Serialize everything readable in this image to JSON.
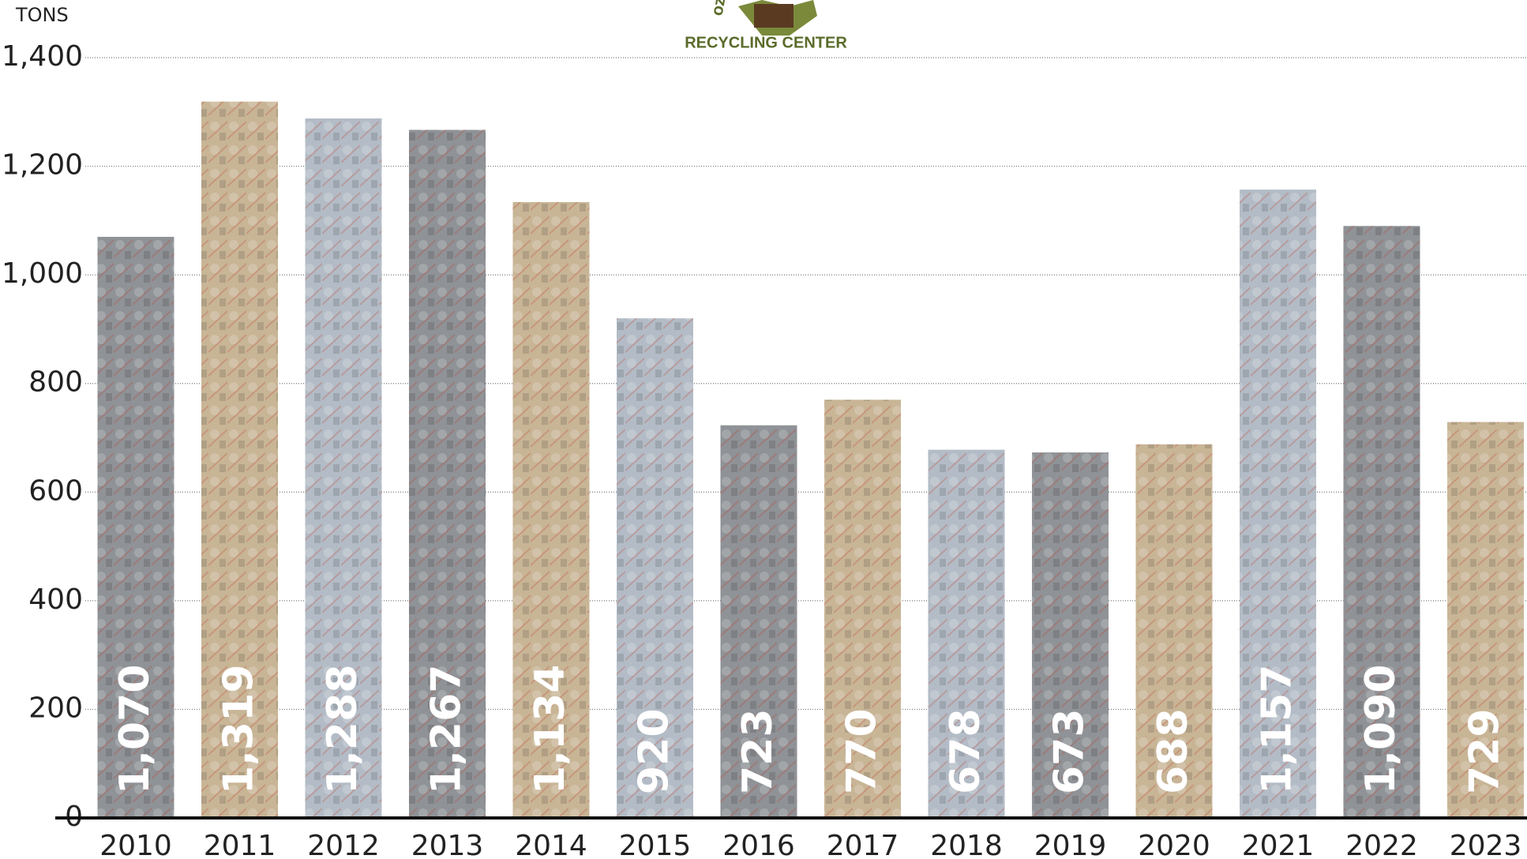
{
  "chart_data": {
    "type": "bar",
    "y_label": "TONS",
    "logo": {
      "top": "OZARK",
      "bottom": "RECYCLING CENTER"
    },
    "categories": [
      "2010",
      "2011",
      "2012",
      "2013",
      "2014",
      "2015",
      "2016",
      "2017",
      "2018",
      "2019",
      "2020",
      "2021",
      "2022",
      "2023"
    ],
    "values": [
      1070,
      1319,
      1288,
      1267,
      1134,
      920,
      723,
      770,
      678,
      673,
      688,
      1157,
      1090,
      729
    ],
    "value_labels": [
      "1,070",
      "1,319",
      "1,288",
      "1,267",
      "1,134",
      "920",
      "723",
      "770",
      "678",
      "673",
      "688",
      "1,157",
      "1,090",
      "729"
    ],
    "colors": [
      "#8f9296",
      "#c8b596",
      "#b3bcc6",
      "#8f9296",
      "#c8b596",
      "#b3bcc6",
      "#8f9296",
      "#c8b596",
      "#b3bcc6",
      "#8f9296",
      "#c8b596",
      "#b3bcc6",
      "#8f9296",
      "#c8b596"
    ],
    "ylim": [
      0,
      1400
    ],
    "yticks": [
      0,
      200,
      400,
      600,
      800,
      {
        "value": 1000,
        "label": "1,000"
      },
      {
        "value": 1200,
        "label": "1,200"
      },
      {
        "value": 1400,
        "label": "1,400"
      }
    ],
    "grid": true
  }
}
